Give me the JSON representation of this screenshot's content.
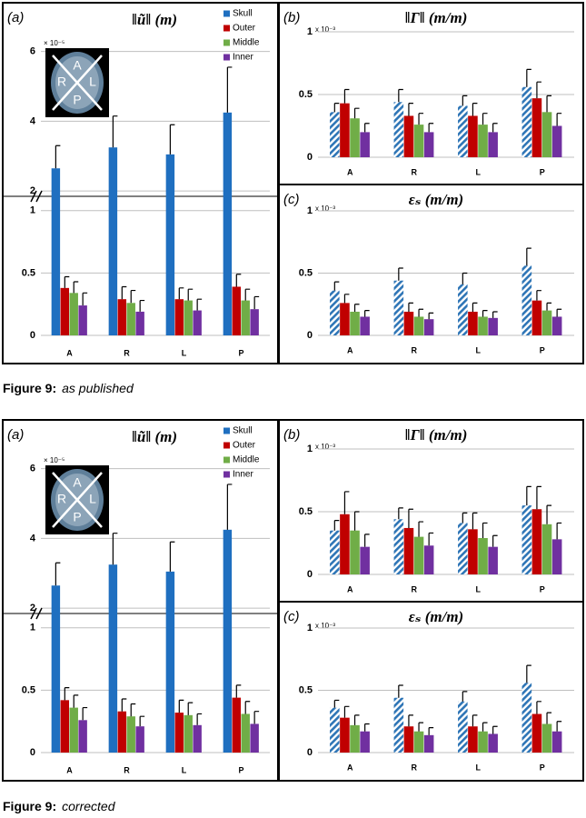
{
  "chart_data": [
    {
      "type": "bar",
      "panel": "(a)",
      "title": "‖ũ‖ (m)",
      "multiplier": "× 10⁻⁵",
      "categories": [
        "A",
        "R",
        "L",
        "P"
      ],
      "ylim": [
        [
          0,
          1.1
        ],
        [
          1.9,
          6.2
        ]
      ],
      "yticks": [
        0,
        0.5,
        1,
        2,
        4,
        6
      ],
      "grid": true,
      "inset_labels": [
        "A",
        "R",
        "L",
        "P"
      ],
      "series": [
        {
          "name": "Skull",
          "color": "#1f6fc0",
          "values": [
            2.65,
            3.25,
            3.05,
            4.25
          ],
          "errors": [
            0.65,
            0.9,
            0.85,
            1.3
          ]
        },
        {
          "name": "Outer",
          "color": "#c00000",
          "values": [
            0.38,
            0.29,
            0.29,
            0.39
          ],
          "errors": [
            0.09,
            0.1,
            0.09,
            0.1
          ]
        },
        {
          "name": "Middle",
          "color": "#70ad47",
          "values": [
            0.34,
            0.26,
            0.28,
            0.28
          ],
          "errors": [
            0.09,
            0.1,
            0.09,
            0.09
          ]
        },
        {
          "name": "Inner",
          "color": "#7030a0",
          "values": [
            0.24,
            0.19,
            0.2,
            0.21
          ],
          "errors": [
            0.1,
            0.09,
            0.09,
            0.1
          ]
        }
      ]
    },
    {
      "type": "bar",
      "panel": "(b)",
      "title": "‖Γ‖ (m/m)",
      "multiplier": "x 10⁻³",
      "categories": [
        "A",
        "R",
        "L",
        "P"
      ],
      "ylim": [
        0,
        1
      ],
      "yticks": [
        0,
        0.5,
        1
      ],
      "grid": true,
      "series": [
        {
          "color": "#1f6fc0",
          "pattern": "hatch",
          "values": [
            0.36,
            0.44,
            0.41,
            0.56
          ],
          "errors": [
            0.07,
            0.1,
            0.08,
            0.14
          ]
        },
        {
          "color": "#c00000",
          "values": [
            0.43,
            0.33,
            0.33,
            0.47
          ],
          "errors": [
            0.11,
            0.1,
            0.1,
            0.13
          ]
        },
        {
          "color": "#70ad47",
          "values": [
            0.31,
            0.26,
            0.26,
            0.36
          ],
          "errors": [
            0.08,
            0.09,
            0.09,
            0.13
          ]
        },
        {
          "color": "#7030a0",
          "values": [
            0.2,
            0.2,
            0.2,
            0.25
          ],
          "errors": [
            0.07,
            0.07,
            0.07,
            0.1
          ]
        }
      ]
    },
    {
      "type": "bar",
      "panel": "(c)",
      "title": "εₛ (m/m)",
      "multiplier": "x 10⁻³",
      "categories": [
        "A",
        "R",
        "L",
        "P"
      ],
      "ylim": [
        0,
        1
      ],
      "yticks": [
        0,
        0.5,
        1
      ],
      "grid": true,
      "series": [
        {
          "color": "#1f6fc0",
          "pattern": "hatch",
          "values": [
            0.36,
            0.44,
            0.41,
            0.56
          ],
          "errors": [
            0.07,
            0.1,
            0.09,
            0.14
          ]
        },
        {
          "color": "#c00000",
          "values": [
            0.26,
            0.19,
            0.19,
            0.28
          ],
          "errors": [
            0.07,
            0.07,
            0.07,
            0.08
          ]
        },
        {
          "color": "#70ad47",
          "values": [
            0.19,
            0.15,
            0.15,
            0.2
          ],
          "errors": [
            0.06,
            0.06,
            0.05,
            0.06
          ]
        },
        {
          "color": "#7030a0",
          "values": [
            0.15,
            0.13,
            0.14,
            0.15
          ],
          "errors": [
            0.05,
            0.05,
            0.05,
            0.06
          ]
        }
      ]
    },
    {
      "type": "bar",
      "panel": "(a)",
      "title": "‖ũ‖ (m)",
      "multiplier": "× 10⁻⁵",
      "categories": [
        "A",
        "R",
        "L",
        "P"
      ],
      "ylim": [
        [
          0,
          1.1
        ],
        [
          1.9,
          6.2
        ]
      ],
      "yticks": [
        0,
        0.5,
        1,
        2,
        4,
        6
      ],
      "grid": true,
      "inset_labels": [
        "A",
        "R",
        "L",
        "P"
      ],
      "series": [
        {
          "name": "Skull",
          "color": "#1f6fc0",
          "values": [
            2.65,
            3.25,
            3.05,
            4.25
          ],
          "errors": [
            0.65,
            0.9,
            0.85,
            1.3
          ]
        },
        {
          "name": "Outer",
          "color": "#c00000",
          "values": [
            0.42,
            0.33,
            0.32,
            0.44
          ],
          "errors": [
            0.1,
            0.1,
            0.1,
            0.1
          ]
        },
        {
          "name": "Middle",
          "color": "#70ad47",
          "values": [
            0.36,
            0.29,
            0.3,
            0.31
          ],
          "errors": [
            0.1,
            0.1,
            0.1,
            0.1
          ]
        },
        {
          "name": "Inner",
          "color": "#7030a0",
          "values": [
            0.26,
            0.21,
            0.22,
            0.23
          ],
          "errors": [
            0.1,
            0.08,
            0.09,
            0.1
          ]
        }
      ]
    },
    {
      "type": "bar",
      "panel": "(b)",
      "title": "‖Γ‖ (m/m)",
      "multiplier": "x 10⁻³",
      "categories": [
        "A",
        "R",
        "L",
        "P"
      ],
      "ylim": [
        0,
        1
      ],
      "yticks": [
        0,
        0.5,
        1
      ],
      "grid": true,
      "series": [
        {
          "color": "#1f6fc0",
          "pattern": "hatch",
          "values": [
            0.35,
            0.44,
            0.41,
            0.55
          ],
          "errors": [
            0.08,
            0.09,
            0.08,
            0.15
          ]
        },
        {
          "color": "#c00000",
          "values": [
            0.48,
            0.37,
            0.36,
            0.52
          ],
          "errors": [
            0.18,
            0.15,
            0.13,
            0.18
          ]
        },
        {
          "color": "#70ad47",
          "values": [
            0.35,
            0.3,
            0.29,
            0.4
          ],
          "errors": [
            0.15,
            0.12,
            0.12,
            0.15
          ]
        },
        {
          "color": "#7030a0",
          "values": [
            0.22,
            0.23,
            0.22,
            0.28
          ],
          "errors": [
            0.1,
            0.1,
            0.09,
            0.13
          ]
        }
      ]
    },
    {
      "type": "bar",
      "panel": "(c)",
      "title": "εₛ (m/m)",
      "multiplier": "x 10⁻³",
      "categories": [
        "A",
        "R",
        "L",
        "P"
      ],
      "ylim": [
        0,
        1
      ],
      "yticks": [
        0,
        0.5,
        1
      ],
      "grid": true,
      "series": [
        {
          "color": "#1f6fc0",
          "pattern": "hatch",
          "values": [
            0.36,
            0.44,
            0.41,
            0.56
          ],
          "errors": [
            0.06,
            0.1,
            0.08,
            0.14
          ]
        },
        {
          "color": "#c00000",
          "values": [
            0.28,
            0.21,
            0.21,
            0.31
          ],
          "errors": [
            0.09,
            0.09,
            0.09,
            0.1
          ]
        },
        {
          "color": "#70ad47",
          "values": [
            0.22,
            0.17,
            0.17,
            0.23
          ],
          "errors": [
            0.08,
            0.07,
            0.07,
            0.09
          ]
        },
        {
          "color": "#7030a0",
          "values": [
            0.17,
            0.14,
            0.15,
            0.17
          ],
          "errors": [
            0.06,
            0.06,
            0.06,
            0.08
          ]
        }
      ]
    }
  ],
  "captions": [
    {
      "label": "Figure 9:",
      "note": "as published"
    },
    {
      "label": "Figure 9:",
      "note": "corrected"
    }
  ]
}
